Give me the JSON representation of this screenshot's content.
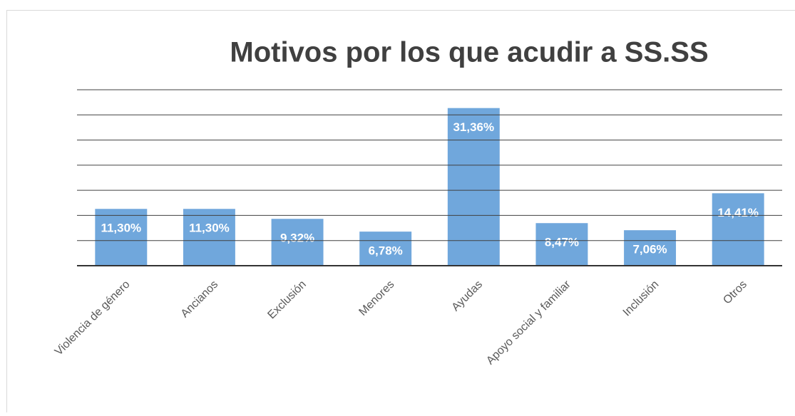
{
  "chart_data": {
    "type": "bar",
    "title": "Motivos por los que acudir a SS.SS",
    "categories": [
      "Violencia de género",
      "Ancianos",
      "Exclusión",
      "Menores",
      "Ayudas",
      "Apoyo social y familiar",
      "Inclusión",
      "Otros"
    ],
    "values": [
      11.3,
      11.3,
      9.32,
      6.78,
      31.36,
      8.47,
      7.06,
      14.41
    ],
    "value_labels": [
      "11,30%",
      "11,30%",
      "9,32%",
      "6,78%",
      "31,36%",
      "8,47%",
      "7,06%",
      "14,41%"
    ],
    "color": "#70a7dc",
    "ylim": [
      0,
      35
    ],
    "yticks": [
      0,
      5,
      10,
      15,
      20,
      25,
      30,
      35
    ],
    "grid": true
  }
}
